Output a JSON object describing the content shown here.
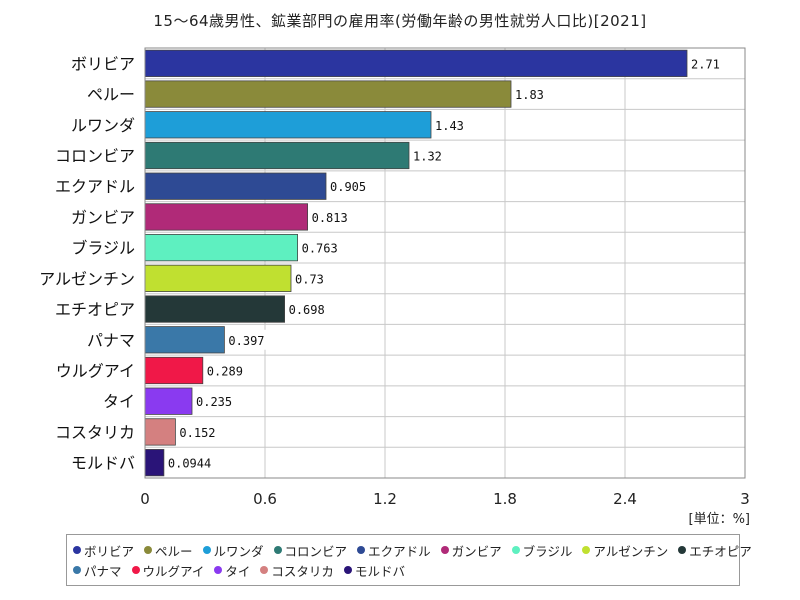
{
  "chart_data": {
    "type": "bar",
    "orientation": "horizontal",
    "title": "15～64歳男性、鉱業部門の雇用率(労働年齢の男性就労人口比)[2021]",
    "unit": "[単位：%]",
    "xlim": [
      0,
      3
    ],
    "xticks": [
      "0",
      "0.6",
      "1.2",
      "1.8",
      "2.4",
      "3"
    ],
    "grid": true,
    "legend_position": "bottom",
    "categories": [
      "ボリビア",
      "ペルー",
      "ルワンダ",
      "コロンビア",
      "エクアドル",
      "ガンビア",
      "ブラジル",
      "アルゼンチン",
      "エチオピア",
      "パナマ",
      "ウルグアイ",
      "タイ",
      "コスタリカ",
      "モルドバ"
    ],
    "values": [
      2.71,
      1.83,
      1.43,
      1.32,
      0.905,
      0.813,
      0.763,
      0.73,
      0.698,
      0.397,
      0.289,
      0.235,
      0.152,
      0.0944
    ],
    "value_labels": [
      "2.71",
      "1.83",
      "1.43",
      "1.32",
      "0.905",
      "0.813",
      "0.763",
      "0.73",
      "0.698",
      "0.397",
      "0.289",
      "0.235",
      "0.152",
      "0.0944"
    ],
    "colors": [
      "#2b35a0",
      "#8a8a3a",
      "#1e9ed8",
      "#2e7a74",
      "#2e4a94",
      "#b02a78",
      "#5ef0c0",
      "#c0e030",
      "#243838",
      "#3a78a8",
      "#f01848",
      "#8a3af0",
      "#d48080",
      "#2a1478"
    ]
  }
}
